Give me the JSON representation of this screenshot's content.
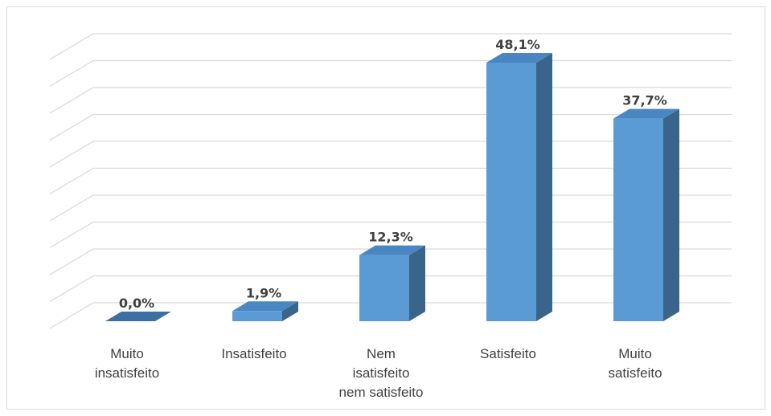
{
  "chart_data": {
    "type": "bar",
    "style": "3d-column",
    "categories": [
      [
        "Muito",
        "insatisfeito"
      ],
      [
        "Insatisfeito"
      ],
      [
        "Nem",
        "isatisfeito",
        "nem satisfeito"
      ],
      [
        "Satisfeito"
      ],
      [
        "Muito",
        "satisfeito"
      ]
    ],
    "values": [
      0.0,
      1.9,
      12.3,
      48.1,
      37.7
    ],
    "value_labels": [
      "0,0%",
      "1,9%",
      "12,3%",
      "48,1%",
      "37,7%"
    ],
    "ylim": [
      0,
      50
    ],
    "grid": true,
    "legend": "none",
    "colors": {
      "front": "#5b9bd5",
      "top": "#4a86c2",
      "side": "#3a6489",
      "grid": "#d9d9d9",
      "text": "#404040"
    }
  }
}
